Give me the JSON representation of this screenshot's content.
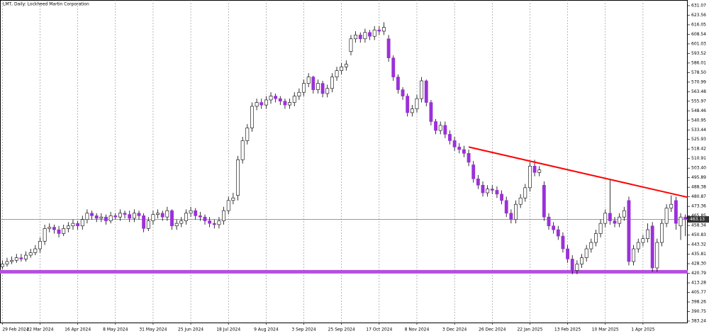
{
  "chart_data": {
    "type": "candlestick",
    "title": "LMT, Daily:  Lockheed Martin Corporation",
    "categories": [
      "29 Feb 2024",
      null,
      null,
      null,
      null,
      null,
      null,
      null,
      "22 Mar 2024",
      null,
      null,
      null,
      null,
      null,
      null,
      null,
      "16 Apr 2024",
      null,
      null,
      null,
      null,
      null,
      null,
      null,
      "8 May 2024",
      null,
      null,
      null,
      null,
      null,
      null,
      null,
      "31 May 2024",
      null,
      null,
      null,
      null,
      null,
      null,
      null,
      "25 Jun 2024",
      null,
      null,
      null,
      null,
      null,
      null,
      null,
      "18 Jul 2024",
      null,
      null,
      null,
      null,
      null,
      null,
      null,
      "9 Aug 2024",
      null,
      null,
      null,
      null,
      null,
      null,
      null,
      "3 Sep 2024",
      null,
      null,
      null,
      null,
      null,
      null,
      null,
      "25 Sep 2024",
      null,
      null,
      null,
      null,
      null,
      null,
      null,
      "17 Oct 2024",
      null,
      null,
      null,
      null,
      null,
      null,
      null,
      "8 Nov 2024",
      null,
      null,
      null,
      null,
      null,
      null,
      null,
      "3 Dec 2024",
      null,
      null,
      null,
      null,
      null,
      null,
      null,
      "26 Dec 2024",
      null,
      null,
      null,
      null,
      null,
      null,
      null,
      "22 Jan 2025",
      null,
      null,
      null,
      null,
      null,
      null,
      null,
      "13 Feb 2025",
      null,
      null,
      null,
      null,
      null,
      null,
      null,
      "10 Mar 2025",
      null,
      null,
      null,
      null,
      null,
      null,
      null,
      "1 Apr 2025",
      null,
      null,
      null,
      null,
      null,
      null,
      null,
      null,
      null
    ],
    "open": [
      426,
      428,
      430,
      431,
      433,
      432,
      435,
      437,
      440,
      446,
      456,
      457,
      455,
      452,
      456,
      458,
      460,
      458,
      463,
      468,
      466,
      464,
      465,
      462,
      466,
      465,
      468,
      467,
      464,
      468,
      466,
      456,
      462,
      467,
      468,
      465,
      470,
      458,
      460,
      462,
      468,
      470,
      466,
      465,
      462,
      460,
      459,
      462,
      470,
      478,
      482,
      510,
      525,
      535,
      552,
      555,
      553,
      557,
      560,
      558,
      556,
      553,
      555,
      560,
      563,
      570,
      575,
      565,
      570,
      562,
      566,
      575,
      580,
      583,
      595,
      605,
      608,
      605,
      610,
      607,
      612,
      611,
      605,
      590,
      575,
      565,
      560,
      547,
      550,
      558,
      572,
      555,
      540,
      533,
      537,
      530,
      525,
      520,
      518,
      515,
      506,
      495,
      490,
      484,
      487,
      486,
      483,
      478,
      468,
      463,
      475,
      480,
      488,
      505,
      500,
      490,
      465,
      458,
      455,
      450,
      440,
      432,
      423,
      428,
      433,
      440,
      445,
      452,
      460,
      468,
      462,
      460,
      465,
      478,
      430,
      440,
      445,
      448,
      458,
      425,
      445,
      460,
      472,
      478,
      458,
      465
    ],
    "high": [
      431,
      433,
      434,
      436,
      436,
      438,
      440,
      443,
      449,
      459,
      460,
      459,
      458,
      459,
      461,
      463,
      462,
      466,
      471,
      470,
      468,
      468,
      467,
      469,
      468,
      471,
      470,
      470,
      471,
      470,
      468,
      465,
      470,
      471,
      470,
      473,
      471,
      463,
      465,
      471,
      473,
      472,
      469,
      467,
      465,
      463,
      465,
      473,
      481,
      484,
      513,
      528,
      538,
      555,
      558,
      558,
      560,
      563,
      562,
      560,
      558,
      558,
      563,
      566,
      573,
      578,
      576,
      573,
      572,
      569,
      578,
      583,
      586,
      588,
      608,
      611,
      610,
      613,
      612,
      615,
      615,
      618,
      608,
      592,
      577,
      567,
      562,
      553,
      561,
      575,
      573,
      557,
      542,
      540,
      540,
      533,
      528,
      523,
      521,
      518,
      509,
      498,
      493,
      490,
      490,
      489,
      486,
      481,
      471,
      478,
      483,
      491,
      508,
      510,
      505,
      493,
      468,
      461,
      458,
      453,
      443,
      435,
      431,
      436,
      443,
      448,
      455,
      463,
      471,
      494,
      465,
      468,
      473,
      481,
      443,
      448,
      451,
      460,
      461,
      448,
      463,
      475,
      482,
      481,
      468,
      467
    ],
    "low": [
      424,
      426,
      428,
      429,
      430,
      430,
      433,
      435,
      437,
      443,
      453,
      452,
      449,
      450,
      453,
      455,
      455,
      455,
      460,
      463,
      461,
      461,
      459,
      460,
      463,
      462,
      464,
      461,
      461,
      463,
      453,
      454,
      459,
      464,
      462,
      462,
      455,
      455,
      457,
      459,
      465,
      463,
      462,
      459,
      457,
      456,
      456,
      459,
      467,
      475,
      478,
      507,
      522,
      532,
      549,
      550,
      550,
      554,
      555,
      553,
      550,
      550,
      552,
      557,
      560,
      567,
      562,
      562,
      559,
      559,
      563,
      572,
      577,
      580,
      592,
      602,
      602,
      602,
      604,
      604,
      608,
      608,
      587,
      572,
      562,
      557,
      544,
      544,
      547,
      555,
      552,
      537,
      530,
      530,
      527,
      522,
      517,
      515,
      512,
      505,
      492,
      487,
      481,
      481,
      483,
      480,
      475,
      465,
      460,
      460,
      472,
      477,
      485,
      497,
      497,
      462,
      455,
      452,
      447,
      437,
      429,
      420,
      420,
      425,
      430,
      437,
      442,
      449,
      457,
      459,
      457,
      457,
      462,
      427,
      427,
      437,
      442,
      445,
      422,
      422,
      442,
      457,
      469,
      455,
      447,
      450
    ],
    "close": [
      428,
      430,
      431,
      433,
      432,
      435,
      437,
      440,
      446,
      456,
      457,
      455,
      452,
      456,
      458,
      460,
      458,
      463,
      468,
      466,
      464,
      465,
      462,
      466,
      465,
      468,
      467,
      464,
      468,
      466,
      456,
      462,
      467,
      468,
      465,
      470,
      458,
      460,
      462,
      468,
      470,
      466,
      465,
      462,
      460,
      459,
      462,
      470,
      478,
      480,
      510,
      525,
      535,
      552,
      555,
      553,
      557,
      560,
      558,
      556,
      553,
      555,
      560,
      563,
      570,
      575,
      565,
      570,
      562,
      566,
      575,
      580,
      583,
      585,
      605,
      608,
      605,
      610,
      607,
      612,
      611,
      614,
      590,
      575,
      565,
      560,
      547,
      550,
      558,
      572,
      555,
      540,
      533,
      537,
      530,
      525,
      520,
      518,
      515,
      508,
      495,
      490,
      484,
      487,
      486,
      483,
      478,
      468,
      463,
      475,
      480,
      488,
      505,
      500,
      502,
      465,
      458,
      455,
      450,
      440,
      432,
      423,
      428,
      433,
      440,
      445,
      452,
      460,
      468,
      462,
      460,
      465,
      470,
      430,
      440,
      445,
      448,
      455,
      425,
      445,
      460,
      472,
      475,
      460,
      465,
      463.13
    ],
    "up_color": "#ffffff",
    "down_color": "#9b30d9",
    "outline_color": "#000000",
    "ylim": [
      382.1,
      635.5
    ],
    "yticks": [
      631.07,
      623.56,
      616.05,
      608.54,
      601.03,
      593.52,
      586.01,
      {
        "value": 578.5,
        "label": "578.50"
      },
      570.99,
      563.48,
      555.97,
      548.46,
      540.95,
      533.44,
      525.93,
      518.42,
      510.91,
      {
        "value": 503.4,
        "label": "503.40"
      },
      495.89,
      488.38,
      480.87,
      473.36,
      465.85,
      458.34,
      450.83,
      443.32,
      435.81,
      {
        "value": 428.3,
        "label": "428.30"
      },
      420.79,
      413.28,
      405.77,
      398.26,
      390.75,
      383.24
    ],
    "last_price": 463.13,
    "support": {
      "value": 422,
      "color": "#b44fe0"
    },
    "trendline": {
      "x": [
        99,
        145.5
      ],
      "y": [
        520,
        480.5
      ],
      "color": "#ff0000"
    },
    "grid": true
  }
}
